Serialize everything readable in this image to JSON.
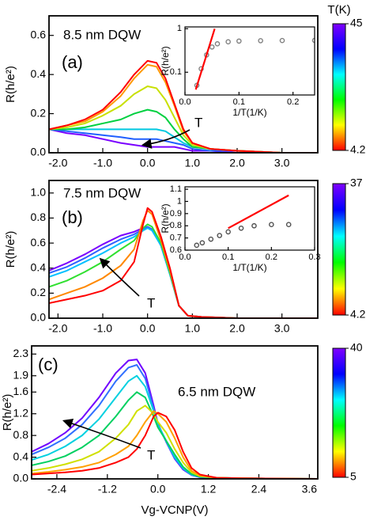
{
  "chart_data": [
    {
      "type": "line",
      "title": "8.5 nm DQW",
      "panel_label": "(a)",
      "ylabel": "R(h/e²)",
      "annotation": "T",
      "xlim": [
        -2.2,
        3.8
      ],
      "xticks": [
        {
          "value": -2.0,
          "label": "-2.0"
        },
        {
          "value": -1.0,
          "label": "-1.0"
        },
        {
          "value": 0,
          "label": "0.0"
        },
        {
          "value": 1.0,
          "label": "1.0"
        },
        {
          "value": 2.0,
          "label": "2.0"
        },
        {
          "value": 3.0,
          "label": "3.0"
        }
      ],
      "ylim": [
        0,
        0.7
      ],
      "yticks": [
        {
          "value": 0,
          "label": "0.0"
        },
        0.2,
        0.4,
        0.6
      ],
      "x": [
        -2.2,
        -1.8,
        -1.4,
        -1.0,
        -0.6,
        -0.3,
        0,
        0.2,
        0.4,
        0.6,
        0.8,
        1.0,
        1.4,
        2.0,
        3.0,
        3.8
      ],
      "series": [
        {
          "color": "#7a00ff",
          "values": [
            0.12,
            0.1,
            0.09,
            0.07,
            0.05,
            0.04,
            0.03,
            0.03,
            0.03,
            0.03,
            0.02,
            0.01,
            0.01,
            0,
            0,
            0
          ]
        },
        {
          "color": "#2060ff",
          "values": [
            0.12,
            0.11,
            0.1,
            0.09,
            0.08,
            0.07,
            0.07,
            0.07,
            0.06,
            0.05,
            0.04,
            0.02,
            0.01,
            0.01,
            0,
            0
          ]
        },
        {
          "color": "#00c8e0",
          "values": [
            0.12,
            0.12,
            0.12,
            0.12,
            0.12,
            0.12,
            0.12,
            0.12,
            0.11,
            0.08,
            0.05,
            0.03,
            0.02,
            0.01,
            0,
            0
          ]
        },
        {
          "color": "#00d040",
          "values": [
            0.12,
            0.12,
            0.13,
            0.15,
            0.17,
            0.2,
            0.22,
            0.21,
            0.18,
            0.12,
            0.07,
            0.03,
            0.02,
            0.01,
            0,
            0
          ]
        },
        {
          "color": "#c8e000",
          "values": [
            0.12,
            0.13,
            0.15,
            0.19,
            0.24,
            0.3,
            0.34,
            0.33,
            0.27,
            0.18,
            0.09,
            0.04,
            0.02,
            0.01,
            0,
            0
          ]
        },
        {
          "color": "#ff9900",
          "values": [
            0.12,
            0.14,
            0.16,
            0.21,
            0.29,
            0.38,
            0.45,
            0.44,
            0.36,
            0.24,
            0.11,
            0.05,
            0.02,
            0.01,
            0,
            0
          ]
        },
        {
          "color": "#ff0000",
          "values": [
            0.12,
            0.14,
            0.17,
            0.22,
            0.31,
            0.4,
            0.47,
            0.46,
            0.38,
            0.25,
            0.12,
            0.05,
            0.02,
            0.01,
            0,
            0
          ]
        }
      ],
      "colorbar": {
        "label": "T(K)",
        "zlim": [
          4.2,
          45
        ],
        "zticks": [
          45,
          4.2
        ],
        "colors": [
          "#ff0000",
          "#ffff00",
          "#00ff00",
          "#00ffff",
          "#0000ff",
          "#8000ff"
        ]
      },
      "inset": {
        "type": "line",
        "xlabel": "1/T(1/K)",
        "ylabel": "R(h/e²)",
        "log_y": true,
        "xlim": [
          0,
          0.24
        ],
        "xticks": [
          {
            "value": 0,
            "label": "0.0"
          },
          0.1,
          0.2
        ],
        "ylim": [
          0.03,
          1.1
        ],
        "yticks": [
          0.1,
          1
        ],
        "series": [
          {
            "color": "#808080",
            "markers": true,
            "x": [
              0.022,
              0.03,
              0.04,
              0.05,
              0.06,
              0.08,
              0.1,
              0.14,
              0.18,
              0.24
            ],
            "values": [
              0.05,
              0.12,
              0.25,
              0.38,
              0.45,
              0.5,
              0.52,
              0.53,
              0.535,
              0.54
            ]
          },
          {
            "color": "#ff0000",
            "markers": false,
            "x": [
              0.02,
              0.055
            ],
            "values": [
              0.04,
              1.0
            ]
          }
        ]
      }
    },
    {
      "type": "line",
      "title": "7.5 nm DQW",
      "panel_label": "(b)",
      "ylabel": "R(h/e²)",
      "annotation": "T",
      "xlim": [
        -2.2,
        3.8
      ],
      "xticks": [
        {
          "value": -2.0,
          "label": "-2.0"
        },
        {
          "value": -1.0,
          "label": "-1.0"
        },
        {
          "value": 0,
          "label": "0.0"
        },
        {
          "value": 1.0,
          "label": "1.0"
        },
        {
          "value": 2.0,
          "label": "2.0"
        },
        {
          "value": 3.0,
          "label": "3.0"
        }
      ],
      "ylim": [
        0,
        1.1
      ],
      "yticks": [
        {
          "value": 0,
          "label": "0.0"
        },
        0.2,
        0.4,
        0.6,
        0.8,
        {
          "value": 1.0,
          "label": "1.0"
        }
      ],
      "x": [
        -2.2,
        -1.8,
        -1.4,
        -1.0,
        -0.6,
        -0.3,
        -0.1,
        0,
        0.1,
        0.3,
        0.5,
        0.7,
        0.9,
        1.2,
        2.0,
        3.8
      ],
      "series": [
        {
          "color": "#7a00ff",
          "values": [
            0.38,
            0.44,
            0.51,
            0.59,
            0.66,
            0.69,
            0.72,
            0.73,
            0.71,
            0.58,
            0.35,
            0.1,
            0.02,
            0.01,
            0,
            0
          ]
        },
        {
          "color": "#3060ff",
          "values": [
            0.36,
            0.41,
            0.48,
            0.56,
            0.63,
            0.67,
            0.71,
            0.73,
            0.71,
            0.58,
            0.35,
            0.1,
            0.02,
            0.01,
            0,
            0
          ]
        },
        {
          "color": "#00c0ff",
          "values": [
            0.33,
            0.38,
            0.45,
            0.52,
            0.6,
            0.65,
            0.7,
            0.72,
            0.7,
            0.58,
            0.35,
            0.1,
            0.02,
            0.01,
            0,
            0
          ]
        },
        {
          "color": "#30e030",
          "values": [
            0.25,
            0.3,
            0.37,
            0.45,
            0.55,
            0.62,
            0.72,
            0.75,
            0.73,
            0.6,
            0.36,
            0.1,
            0.02,
            0.01,
            0,
            0
          ]
        },
        {
          "color": "#ff8800",
          "values": [
            0.15,
            0.2,
            0.25,
            0.32,
            0.42,
            0.55,
            0.78,
            0.86,
            0.83,
            0.62,
            0.38,
            0.1,
            0.02,
            0.01,
            0,
            0
          ]
        },
        {
          "color": "#ff0000",
          "values": [
            0.12,
            0.15,
            0.18,
            0.22,
            0.3,
            0.45,
            0.75,
            0.88,
            0.85,
            0.65,
            0.4,
            0.1,
            0.02,
            0.01,
            0,
            0
          ]
        }
      ],
      "colorbar": {
        "zlim": [
          4.2,
          37
        ],
        "zticks": [
          37,
          4.2
        ],
        "colors": [
          "#ff0000",
          "#ffff00",
          "#00ff00",
          "#00ffff",
          "#0000ff",
          "#8000ff"
        ]
      },
      "inset": {
        "type": "line",
        "xlabel": "1/T(1/K)",
        "ylabel": "R(h/e²)",
        "log_y": false,
        "xlim": [
          0,
          0.3
        ],
        "xticks": [
          {
            "value": 0,
            "label": "0.0"
          },
          0.1,
          0.2,
          0.3
        ],
        "ylim": [
          0.6,
          1.12
        ],
        "yticks": [
          0.6,
          0.7,
          0.8,
          0.9,
          1,
          1.1
        ],
        "series": [
          {
            "color": "#505050",
            "markers": true,
            "x": [
              0.027,
              0.04,
              0.06,
              0.08,
              0.1,
              0.13,
              0.16,
              0.2,
              0.24
            ],
            "values": [
              0.64,
              0.66,
              0.69,
              0.72,
              0.75,
              0.78,
              0.8,
              0.81,
              0.81
            ]
          },
          {
            "color": "#ff0000",
            "markers": false,
            "x": [
              0.1,
              0.24
            ],
            "values": [
              0.78,
              1.05
            ]
          }
        ]
      }
    },
    {
      "type": "line",
      "title": "6.5 nm DQW",
      "panel_label": "(c)",
      "ylabel": "R(h/e²)",
      "xlabel": "Vg-VCNP(V)",
      "annotation": "T",
      "xlim": [
        -3.0,
        3.8
      ],
      "xticks": [
        {
          "value": -2.4,
          "label": "-2.4"
        },
        {
          "value": -1.2,
          "label": "-1.2"
        },
        {
          "value": 0,
          "label": "0.0"
        },
        1.2,
        2.4,
        3.6
      ],
      "ylim": [
        0,
        2.45
      ],
      "yticks": [
        {
          "value": 0,
          "label": "0.0"
        },
        0.4,
        0.8,
        1.2,
        1.6,
        1.9,
        2.3
      ],
      "x": [
        -3.0,
        -2.6,
        -2.2,
        -1.8,
        -1.4,
        -1.0,
        -0.7,
        -0.5,
        -0.3,
        -0.1,
        0.0,
        0.2,
        0.4,
        0.6,
        0.8,
        1.0,
        1.4,
        2.0,
        3.8
      ],
      "series": [
        {
          "color": "#7000ff",
          "values": [
            0.5,
            0.65,
            0.85,
            1.12,
            1.5,
            1.95,
            2.18,
            2.2,
            1.95,
            1.35,
            1.02,
            0.68,
            0.37,
            0.17,
            0.07,
            0.03,
            0.02,
            0.01,
            0
          ]
        },
        {
          "color": "#3070ff",
          "values": [
            0.45,
            0.58,
            0.75,
            1.0,
            1.35,
            1.8,
            2.05,
            2.1,
            1.85,
            1.3,
            1.0,
            0.68,
            0.38,
            0.18,
            0.07,
            0.03,
            0.02,
            0.01,
            0
          ]
        },
        {
          "color": "#00d0e0",
          "values": [
            0.35,
            0.45,
            0.6,
            0.8,
            1.1,
            1.5,
            1.8,
            1.9,
            1.7,
            1.25,
            1.0,
            0.7,
            0.4,
            0.2,
            0.08,
            0.04,
            0.02,
            0.01,
            0
          ]
        },
        {
          "color": "#00d060",
          "values": [
            0.25,
            0.32,
            0.42,
            0.58,
            0.8,
            1.15,
            1.45,
            1.6,
            1.5,
            1.15,
            0.95,
            0.7,
            0.45,
            0.22,
            0.09,
            0.04,
            0.02,
            0.01,
            0
          ]
        },
        {
          "color": "#d0e000",
          "values": [
            0.15,
            0.2,
            0.27,
            0.36,
            0.5,
            0.75,
            1.0,
            1.25,
            1.35,
            1.2,
            1.05,
            0.85,
            0.55,
            0.3,
            0.12,
            0.05,
            0.02,
            0.01,
            0
          ]
        },
        {
          "color": "#ffa000",
          "values": [
            0.1,
            0.13,
            0.17,
            0.22,
            0.3,
            0.45,
            0.6,
            0.8,
            1.05,
            1.25,
            1.2,
            1.05,
            0.75,
            0.4,
            0.15,
            0.06,
            0.02,
            0.01,
            0
          ]
        },
        {
          "color": "#ff0000",
          "values": [
            0.08,
            0.1,
            0.12,
            0.15,
            0.2,
            0.3,
            0.4,
            0.55,
            0.8,
            1.15,
            1.22,
            1.15,
            0.9,
            0.5,
            0.2,
            0.08,
            0.02,
            0.01,
            0
          ]
        }
      ],
      "colorbar": {
        "zlim": [
          5,
          40
        ],
        "zticks": [
          40,
          5
        ],
        "colors": [
          "#ff0000",
          "#ffff00",
          "#00ff00",
          "#00ffff",
          "#0000ff",
          "#8000ff"
        ]
      }
    }
  ]
}
